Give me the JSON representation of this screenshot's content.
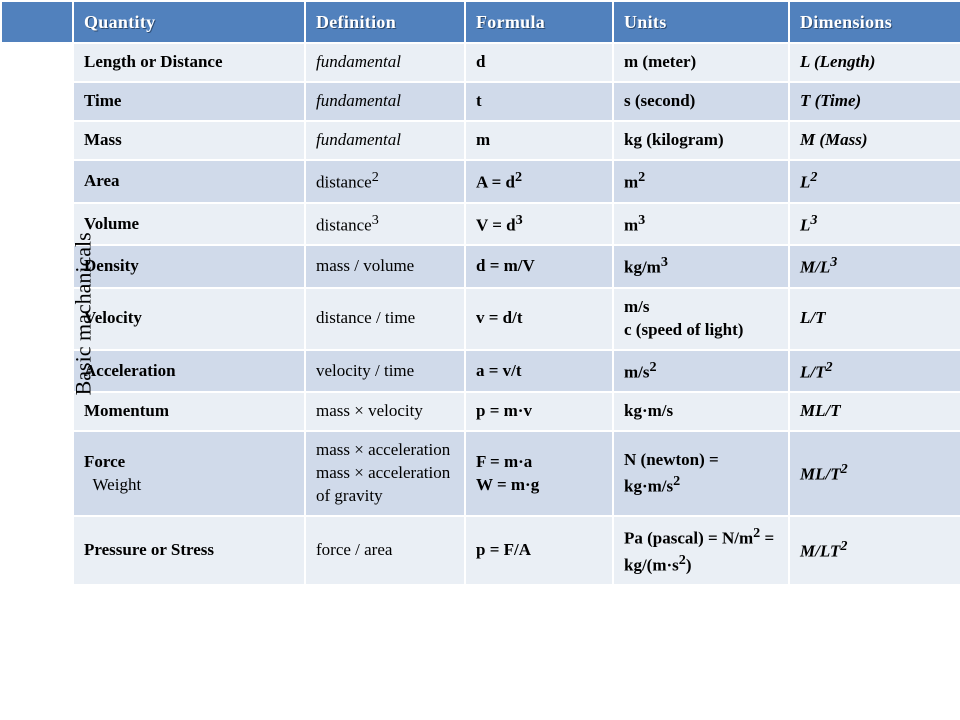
{
  "table": {
    "header_bg": "#5181bd",
    "header_fg": "#ffffff",
    "row_a_bg": "#eaeff5",
    "row_b_bg": "#d0daea",
    "border_color": "#ffffff",
    "side_label": "Basic machanicals",
    "columns": {
      "side": "",
      "quantity": "Quantity",
      "definition": "Definition",
      "formula": "Formula",
      "units": "Units",
      "dimensions": "Dimensions"
    },
    "rows": [
      {
        "quantity": "Length or Distance",
        "definition_html": "<span class='italic'>fundamental</span>",
        "formula_html": "d",
        "units_html": "m (meter)",
        "dimensions_html": "L (Length)"
      },
      {
        "quantity": "Time",
        "definition_html": "<span class='italic'>fundamental</span>",
        "formula_html": "t",
        "units_html": "s (second)",
        "dimensions_html": "T (Time)"
      },
      {
        "quantity": "Mass",
        "definition_html": "<span class='italic'>fundamental</span>",
        "formula_html": "m",
        "units_html": "kg (kilogram)",
        "dimensions_html": "M (Mass)"
      },
      {
        "quantity": "Area",
        "definition_html": "distance<sup>2</sup>",
        "formula_html": "A = d<sup>2</sup>",
        "units_html": "m<sup>2</sup>",
        "dimensions_html": "L<sup>2</sup>"
      },
      {
        "quantity": "Volume",
        "definition_html": "distance<sup>3</sup>",
        "formula_html": "V = d<sup>3</sup>",
        "units_html": "m<sup>3</sup>",
        "dimensions_html": "L<sup>3</sup>"
      },
      {
        "quantity": "Density",
        "definition_html": "mass / volume",
        "formula_html": "d = m/V",
        "units_html": "kg/m<sup>3</sup>",
        "dimensions_html": "M/L<sup>3</sup>"
      },
      {
        "quantity": "Velocity",
        "definition_html": "distance / time",
        "formula_html": "v = d/t",
        "units_html": "m/s<br>c (speed of light)",
        "dimensions_html": "L/T"
      },
      {
        "quantity": "Acceleration",
        "definition_html": "velocity / time",
        "formula_html": "a = v/t",
        "units_html": "m/s<sup>2</sup>",
        "dimensions_html": "L/T<sup>2</sup>"
      },
      {
        "quantity": "Momentum",
        "definition_html": "mass × velocity",
        "formula_html": "p = m·v",
        "units_html": "kg·m/s",
        "dimensions_html": "ML/T"
      },
      {
        "quantity_html": "Force<br><span class='norm'>&nbsp;&nbsp;Weight</span>",
        "definition_html": "mass × acceleration<br>mass × acceleration of gravity",
        "formula_html": "F = m·a<br>W = m·g",
        "units_html": "N (newton) = kg·m/s<sup>2</sup>",
        "dimensions_html": "ML/T<sup>2</sup>"
      },
      {
        "quantity": "Pressure or Stress",
        "definition_html": "force / area",
        "formula_html": "p = F/A",
        "units_html": "Pa (pascal) = N/m<sup>2</sup> = kg/(m·s<sup>2</sup>)",
        "dimensions_html": "M/LT<sup>2</sup>"
      }
    ]
  }
}
